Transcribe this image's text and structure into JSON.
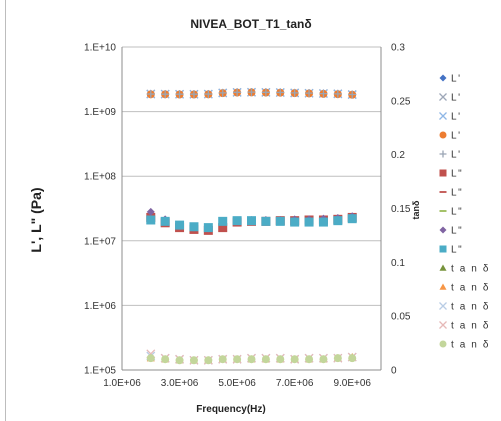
{
  "chart_data": {
    "type": "scatter",
    "title": "NIVEA_BOT_T1_tanδ",
    "xlabel": "Frequency(Hz)",
    "ylabel": "L', L\" (Pa)",
    "y2label": "tanδ",
    "x_ticks": [
      "1.0E+06",
      "3.0E+06",
      "5.0E+06",
      "7.0E+06",
      "9.0E+06"
    ],
    "y_ticks": [
      "1.E+05",
      "1.E+06",
      "1.E+07",
      "1.E+08",
      "1.E+09",
      "1.E+10"
    ],
    "y2_ticks": [
      "0",
      "0.05",
      "0.1",
      "0.15",
      "0.2",
      "0.25",
      "0.3"
    ],
    "xlim": [
      1000000,
      10000000
    ],
    "ylim": [
      100000,
      10000000000
    ],
    "y2lim": [
      0,
      0.3
    ],
    "y_scale": "log",
    "grid": "horizontal",
    "legend_position": "right",
    "x": [
      2000000,
      2500000,
      3000000,
      3500000,
      4000000,
      4500000,
      5000000,
      5500000,
      6000000,
      6500000,
      7000000,
      7500000,
      8000000,
      8500000,
      9000000
    ],
    "series": [
      {
        "name": "L'",
        "axis": "left",
        "marker": "diamond",
        "color": "#4472c4",
        "values": [
          1900000000,
          1880000000,
          1870000000,
          1870000000,
          1880000000,
          1960000000,
          2000000000,
          2010000000,
          2000000000,
          1990000000,
          1960000000,
          1940000000,
          1920000000,
          1900000000,
          1850000000
        ]
      },
      {
        "name": "L'",
        "axis": "left",
        "marker": "x",
        "color": "#9ea7b8",
        "values": [
          1880000000,
          1870000000,
          1860000000,
          1860000000,
          1870000000,
          1950000000,
          1990000000,
          2000000000,
          1990000000,
          1980000000,
          1950000000,
          1930000000,
          1910000000,
          1890000000,
          1840000000
        ]
      },
      {
        "name": "L'",
        "axis": "left",
        "marker": "x",
        "color": "#8fb7e6",
        "values": [
          1860000000,
          1860000000,
          1850000000,
          1850000000,
          1860000000,
          1940000000,
          1980000000,
          1990000000,
          1980000000,
          1970000000,
          1940000000,
          1920000000,
          1900000000,
          1880000000,
          1830000000
        ]
      },
      {
        "name": "L'",
        "axis": "left",
        "marker": "circle",
        "color": "#ed7d31",
        "values": [
          1850000000,
          1850000000,
          1840000000,
          1840000000,
          1850000000,
          1930000000,
          1970000000,
          1980000000,
          1970000000,
          1960000000,
          1930000000,
          1910000000,
          1880000000,
          1860000000,
          1820000000
        ]
      },
      {
        "name": "L'",
        "axis": "left",
        "marker": "plus",
        "color": "#9aa5b4",
        "values": [
          1870000000,
          1860000000,
          1860000000,
          1860000000,
          1870000000,
          1950000000,
          1990000000,
          2000000000,
          1990000000,
          1980000000,
          1950000000,
          1930000000,
          1900000000,
          1880000000,
          1840000000
        ]
      },
      {
        "name": "L\"",
        "axis": "left",
        "marker": "square",
        "color": "#c0504d",
        "values": [
          23000000,
          19000000,
          16000000,
          15000000,
          14500000,
          16000000,
          19500000,
          20000000,
          20000000,
          20500000,
          20500000,
          21000000,
          21000000,
          21500000,
          23000000
        ]
      },
      {
        "name": "L\"",
        "axis": "left",
        "marker": "dash",
        "color": "#c0504d",
        "values": [
          22000000,
          19500000,
          16500000,
          15500000,
          15000000,
          19000000,
          20000000,
          20500000,
          20500000,
          21000000,
          21000000,
          21500000,
          21500000,
          22000000,
          23500000
        ]
      },
      {
        "name": "L\"",
        "axis": "left",
        "marker": "dash",
        "color": "#9bbb59",
        "values": [
          21500000,
          19000000,
          16000000,
          15000000,
          14500000,
          18500000,
          19500000,
          20000000,
          20000000,
          20500000,
          20500000,
          21000000,
          21000000,
          21500000,
          23000000
        ]
      },
      {
        "name": "L\"",
        "axis": "left",
        "marker": "diamond",
        "color": "#8064a2",
        "values": [
          28000000,
          21500000,
          17500000,
          16000000,
          15500000,
          19500000,
          20500000,
          21000000,
          21000000,
          21000000,
          21500000,
          21500000,
          22000000,
          22500000,
          24000000
        ]
      },
      {
        "name": "L\"",
        "axis": "left",
        "marker": "square",
        "color": "#4bacc6",
        "values": [
          21000000,
          20000000,
          17500000,
          16500000,
          16000000,
          20000000,
          20500000,
          20500000,
          20000000,
          20000000,
          19500000,
          19500000,
          19500000,
          20500000,
          22000000
        ]
      },
      {
        "name": "t a n δ",
        "axis": "right",
        "marker": "triangle",
        "color": "#77933c",
        "values": [
          0.012,
          0.01,
          0.009,
          0.009,
          0.009,
          0.01,
          0.01,
          0.01,
          0.01,
          0.01,
          0.01,
          0.01,
          0.01,
          0.011,
          0.012
        ]
      },
      {
        "name": "t a n δ",
        "axis": "right",
        "marker": "triangle",
        "color": "#f79646",
        "values": [
          0.011,
          0.01,
          0.009,
          0.009,
          0.009,
          0.01,
          0.01,
          0.01,
          0.01,
          0.01,
          0.01,
          0.01,
          0.01,
          0.011,
          0.012
        ]
      },
      {
        "name": "t a n δ",
        "axis": "right",
        "marker": "x",
        "color": "#b9cde5",
        "values": [
          0.013,
          0.011,
          0.01,
          0.009,
          0.009,
          0.01,
          0.01,
          0.011,
          0.011,
          0.011,
          0.01,
          0.011,
          0.011,
          0.011,
          0.012
        ]
      },
      {
        "name": "t a n δ",
        "axis": "right",
        "marker": "x",
        "color": "#e6b9b8",
        "values": [
          0.015,
          0.011,
          0.01,
          0.009,
          0.009,
          0.01,
          0.01,
          0.011,
          0.011,
          0.011,
          0.01,
          0.011,
          0.011,
          0.011,
          0.012
        ]
      },
      {
        "name": "t a n δ",
        "axis": "right",
        "marker": "circle",
        "color": "#c3d69b",
        "values": [
          0.011,
          0.01,
          0.009,
          0.009,
          0.009,
          0.01,
          0.01,
          0.01,
          0.01,
          0.01,
          0.01,
          0.01,
          0.01,
          0.011,
          0.011
        ]
      }
    ]
  }
}
